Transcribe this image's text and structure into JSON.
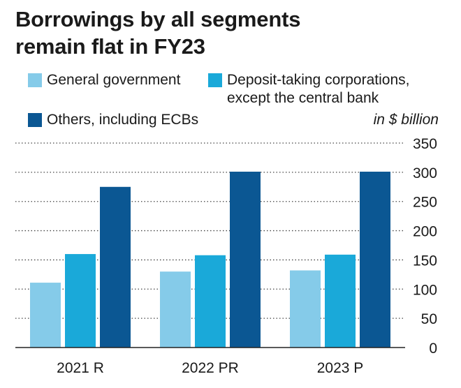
{
  "title_lines": [
    "Borrowings by all segments",
    "remain flat in FY23"
  ],
  "unit_note": "in $ billion",
  "legend": [
    {
      "lines": [
        "General government"
      ],
      "color": "#85cbe9"
    },
    {
      "lines": [
        "Deposit-taking corporations,",
        "except the central bank"
      ],
      "color": "#1aa9d9"
    },
    {
      "lines": [
        "Others, including ECBs"
      ],
      "color": "#0b5793"
    }
  ],
  "chart_data": {
    "type": "bar",
    "categories": [
      "2021 R",
      "2022 PR",
      "2023 P"
    ],
    "series": [
      {
        "name": "General government",
        "values": [
          111,
          130,
          132
        ],
        "color": "#85cbe9"
      },
      {
        "name": "Deposit-taking corporations, except the central bank",
        "values": [
          160,
          158,
          159
        ],
        "color": "#1aa9d9"
      },
      {
        "name": "Others, including ECBs",
        "values": [
          275,
          301,
          301
        ],
        "color": "#0b5793"
      }
    ],
    "ylim": [
      0,
      350
    ],
    "yticks": [
      0,
      50,
      100,
      150,
      200,
      250,
      300,
      350
    ],
    "ytick_position": "right",
    "grid": "dotted horizontal",
    "legend_position": "top",
    "ylabel": "in $ billion",
    "xlabel": ""
  }
}
